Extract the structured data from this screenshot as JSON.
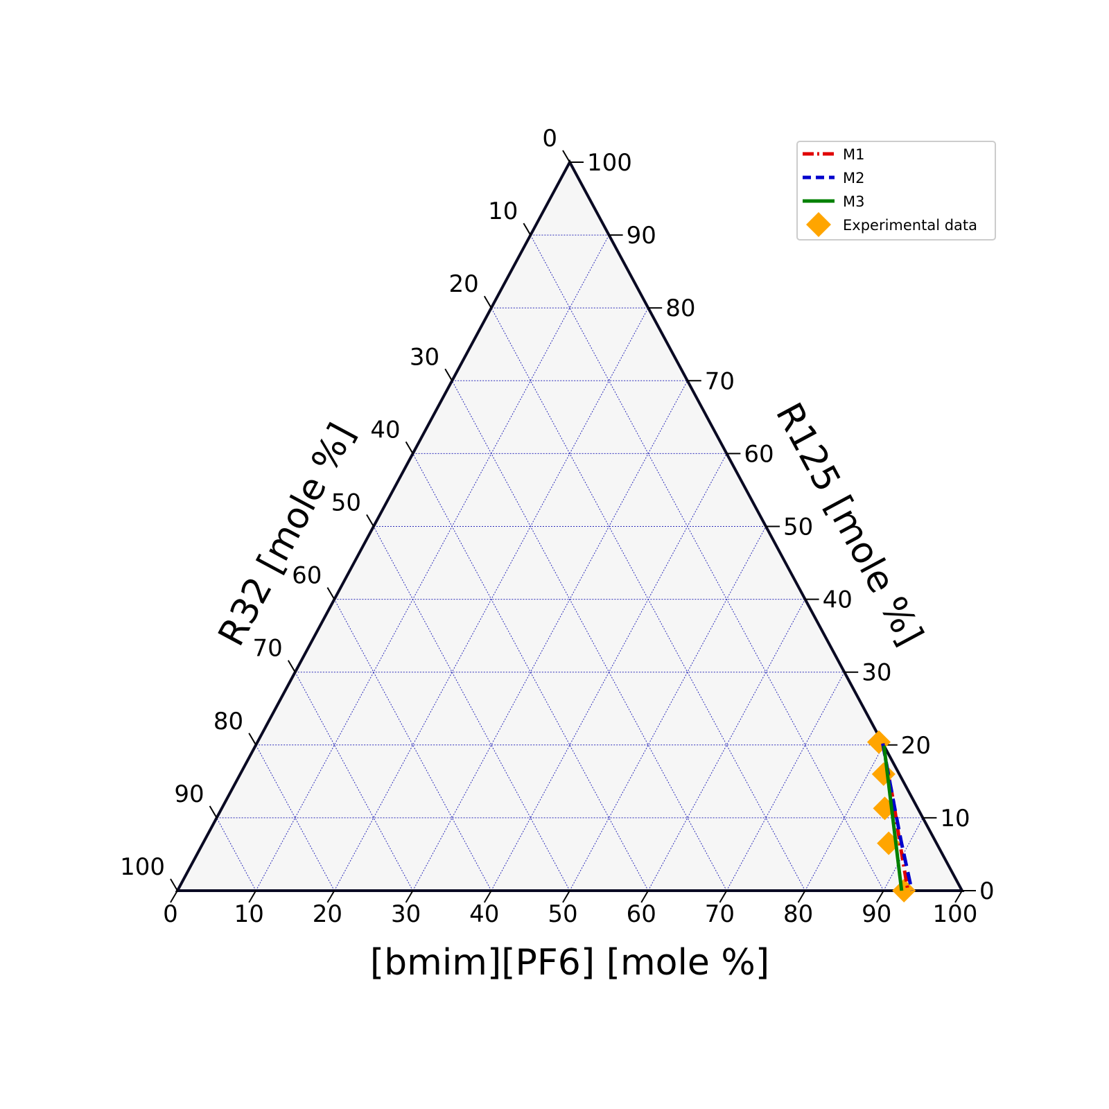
{
  "chart_data": {
    "type": "ternary",
    "axes": {
      "bottom": {
        "label": "[bmim][PF6] [mole %]",
        "ticks": [
          "0",
          "10",
          "20",
          "30",
          "40",
          "50",
          "60",
          "70",
          "80",
          "90",
          "100"
        ]
      },
      "right": {
        "label": "R125 [mole %]",
        "ticks": [
          "0",
          "10",
          "20",
          "30",
          "40",
          "50",
          "60",
          "70",
          "80",
          "90",
          "100"
        ]
      },
      "left": {
        "label": "R32 [mole %]",
        "ticks": [
          "0",
          "10",
          "20",
          "30",
          "40",
          "50",
          "60",
          "70",
          "80",
          "90",
          "100"
        ]
      }
    },
    "range": [
      0,
      100
    ],
    "grid": true,
    "legend_position": "top-right",
    "series": [
      {
        "name": "M1",
        "kind": "line",
        "style": "dashdot",
        "color": "#e00000",
        "points": [
          {
            "ionic_liquid": 79.8,
            "r125": 20.2
          },
          {
            "ionic_liquid": 82.0,
            "r125": 16.9
          },
          {
            "ionic_liquid": 85.3,
            "r125": 12.0
          },
          {
            "ionic_liquid": 88.7,
            "r125": 6.7
          },
          {
            "ionic_liquid": 93.1,
            "r125": 0.0
          }
        ]
      },
      {
        "name": "M2",
        "kind": "line",
        "style": "dashed",
        "color": "#0000cc",
        "points": [
          {
            "ionic_liquid": 79.8,
            "r125": 20.2
          },
          {
            "ionic_liquid": 82.0,
            "r125": 16.9
          },
          {
            "ionic_liquid": 85.3,
            "r125": 12.0
          },
          {
            "ionic_liquid": 88.9,
            "r125": 6.7
          },
          {
            "ionic_liquid": 93.6,
            "r125": 0.0
          }
        ]
      },
      {
        "name": "M3",
        "kind": "line",
        "style": "solid",
        "color": "#008000",
        "points": [
          {
            "ionic_liquid": 80.1,
            "r125": 19.9
          },
          {
            "ionic_liquid": 92.3,
            "r125": 0.0
          }
        ]
      },
      {
        "name": "Experimental data",
        "kind": "scatter",
        "marker": "diamond",
        "color": "#ffa500",
        "points": [
          {
            "ionic_liquid": 79.2,
            "r125": 20.4
          },
          {
            "ionic_liquid": 82.0,
            "r125": 16.0
          },
          {
            "ionic_liquid": 84.5,
            "r125": 11.3
          },
          {
            "ionic_liquid": 87.4,
            "r125": 6.5
          },
          {
            "ionic_liquid": 92.6,
            "r125": 0.0
          }
        ]
      }
    ]
  }
}
